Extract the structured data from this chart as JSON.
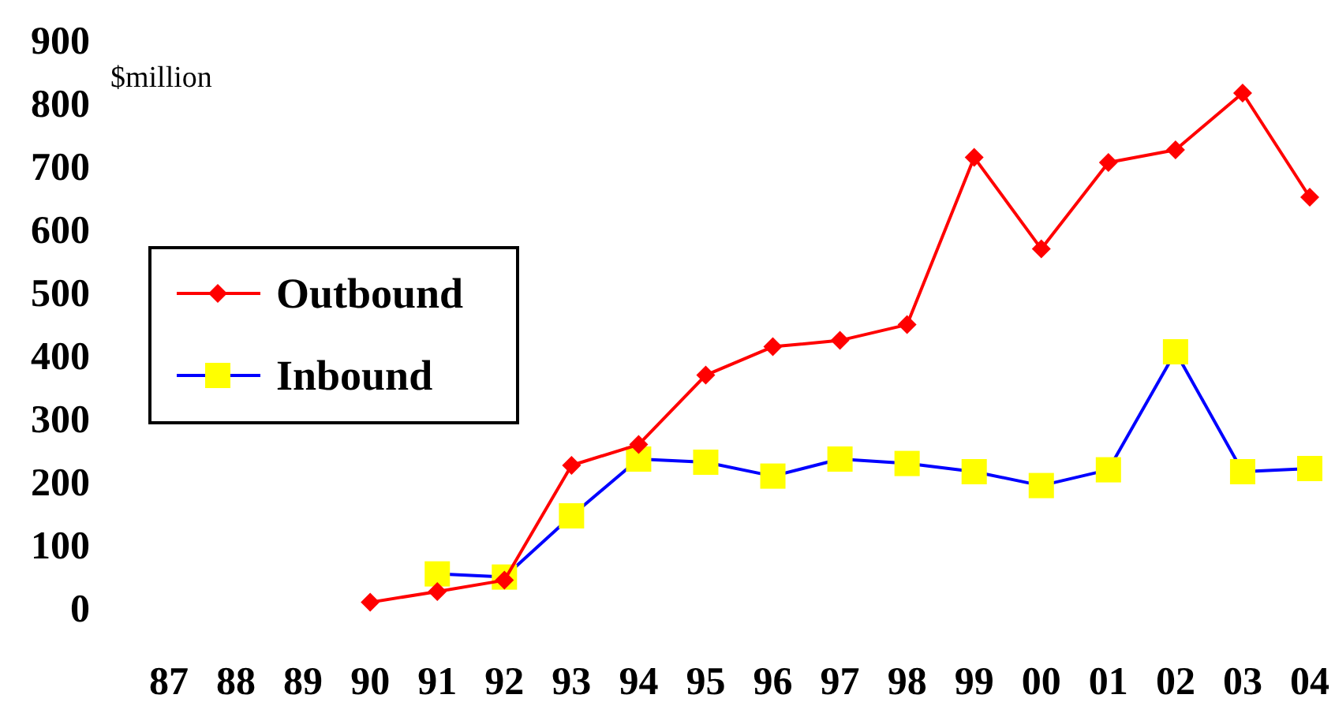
{
  "chart_data": {
    "type": "line",
    "ylabel": "$million",
    "categories": [
      "87",
      "88",
      "89",
      "90",
      "91",
      "92",
      "93",
      "94",
      "95",
      "96",
      "97",
      "98",
      "99",
      "00",
      "01",
      "02",
      "03",
      "04"
    ],
    "series": [
      {
        "name": "Outbound",
        "color": "#ff0000",
        "marker": "diamond",
        "values": [
          null,
          null,
          null,
          8,
          25,
          43,
          225,
          258,
          368,
          413,
          423,
          448,
          713,
          568,
          705,
          725,
          815,
          650
        ]
      },
      {
        "name": "Inbound",
        "color": "#0000ff",
        "marker": "square",
        "values": [
          null,
          null,
          null,
          null,
          53,
          48,
          145,
          235,
          230,
          208,
          235,
          228,
          215,
          193,
          218,
          405,
          215,
          220
        ]
      }
    ],
    "ylim": [
      0,
      900
    ],
    "yticks": [
      0,
      100,
      200,
      300,
      400,
      500,
      600,
      700,
      800,
      900
    ],
    "grid": false,
    "legend": "left"
  }
}
